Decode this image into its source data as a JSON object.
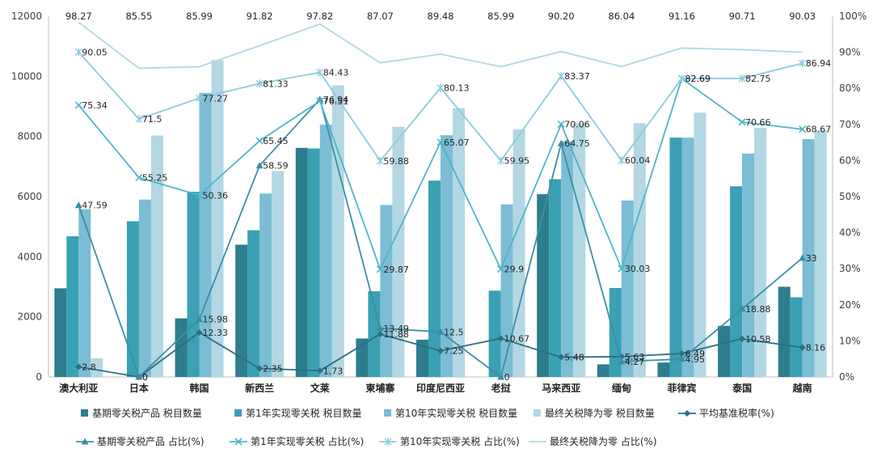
{
  "chart_data": {
    "type": "bar",
    "categories": [
      "澳大利亚",
      "日本",
      "韩国",
      "新西兰",
      "文莱",
      "柬埔寨",
      "印度尼西亚",
      "老挝",
      "马来西亚",
      "缅甸",
      "菲律宾",
      "泰国",
      "越南"
    ],
    "ylim_left": [
      0,
      12000
    ],
    "left_ticks": [
      "0",
      "2000",
      "4000",
      "6000",
      "8000",
      "10000",
      "12000"
    ],
    "ylim_right": [
      0,
      100
    ],
    "right_ticks": [
      "0%",
      "10%",
      "20%",
      "30%",
      "40%",
      "50%",
      "60%",
      "70%",
      "80%",
      "90%",
      "100%"
    ],
    "bar_series": [
      {
        "name": "基期零关税产品 税目数量",
        "color": "#2d7d8e",
        "values": [
          2950,
          0,
          1950,
          4400,
          7620,
          1280,
          1240,
          0,
          6080,
          420,
          480,
          1700,
          3000
        ]
      },
      {
        "name": "第1年实现零关税 税目数量",
        "color": "#3aa0b4",
        "values": [
          4680,
          5180,
          6160,
          4880,
          7600,
          2850,
          6530,
          2870,
          6580,
          2960,
          7960,
          6340,
          2650
        ]
      },
      {
        "name": "第10年实现零关税 税目数量",
        "color": "#7bbdd4",
        "values": [
          5580,
          5900,
          9450,
          6100,
          8390,
          5720,
          8040,
          5740,
          7840,
          5870,
          7960,
          7430,
          7910
        ]
      },
      {
        "name": "最终关税降为零 税目数量",
        "color": "#b3d7e3",
        "values": [
          620,
          8030,
          10540,
          6850,
          9700,
          8320,
          8940,
          8230,
          8440,
          8440,
          8790,
          8280,
          8200
        ]
      }
    ],
    "line_series": [
      {
        "name": "平均基准税率(%)",
        "color": "#2b6f83",
        "marker": "diamond",
        "values": [
          2.8,
          0,
          12.33,
          2.35,
          1.73,
          11.88,
          7.25,
          10.67,
          5.48,
          5.63,
          6.49,
          10.58,
          8.16
        ],
        "labels": [
          "2.8",
          "0",
          "12.33",
          "2.35",
          "1.73",
          "11.88",
          "7.25",
          "10.67",
          "5.48",
          "5.63",
          "6.49",
          "10.58",
          "8.16"
        ]
      },
      {
        "name": "基期零关税产品 占比(%)",
        "color": "#3b8fa3",
        "marker": "triangle",
        "values": [
          47.59,
          0,
          15.98,
          58.59,
          76.94,
          13.49,
          12.5,
          0,
          64.75,
          4.27,
          4.95,
          18.88,
          33
        ],
        "labels": [
          "47.59",
          "0",
          "15.98",
          "58.59",
          "76.94",
          "13.49",
          "12.5",
          "0",
          "64.75",
          "4.27",
          "4.95",
          "18.88",
          "33"
        ]
      },
      {
        "name": "第1年实现零关税 占比(%)",
        "color": "#4fb4cc",
        "marker": "x",
        "values": [
          75.34,
          55.25,
          50.36,
          65.45,
          76.51,
          29.87,
          65.07,
          29.9,
          70.06,
          30.03,
          82.69,
          70.66,
          68.67
        ],
        "labels": [
          "75.34",
          "55.25",
          "50.36",
          "65.45",
          "76.51",
          "29.87",
          "65.07",
          "29.9",
          "70.06",
          "30.03",
          "82.69",
          "70.66",
          "68.67"
        ]
      },
      {
        "name": "第10年实现零关税 占比(%)",
        "color": "#8ccbde",
        "marker": "star",
        "values": [
          90.05,
          71.5,
          77.27,
          81.33,
          84.43,
          59.88,
          80.13,
          59.95,
          83.37,
          60.04,
          82.69,
          82.75,
          86.94
        ],
        "labels": [
          "90.05",
          "71.5",
          "77.27",
          "81.33",
          "84.43",
          "59.88",
          "80.13",
          "59.95",
          "83.37",
          "60.04",
          "82.69",
          "82.75",
          "86.94"
        ]
      },
      {
        "name": "最终关税降为零 占比(%)",
        "color": "#b3d7e3",
        "marker": "none",
        "values": [
          98.27,
          85.55,
          85.99,
          91.82,
          97.82,
          87.07,
          89.48,
          85.99,
          90.2,
          86.04,
          91.16,
          90.71,
          90.03
        ],
        "labels": [
          "98.27",
          "85.55",
          "85.99",
          "91.82",
          "97.82",
          "87.07",
          "89.48",
          "85.99",
          "90.20",
          "86.04",
          "91.16",
          "90.71",
          "90.03"
        ]
      }
    ],
    "legend_position": "bottom",
    "grid": false
  }
}
